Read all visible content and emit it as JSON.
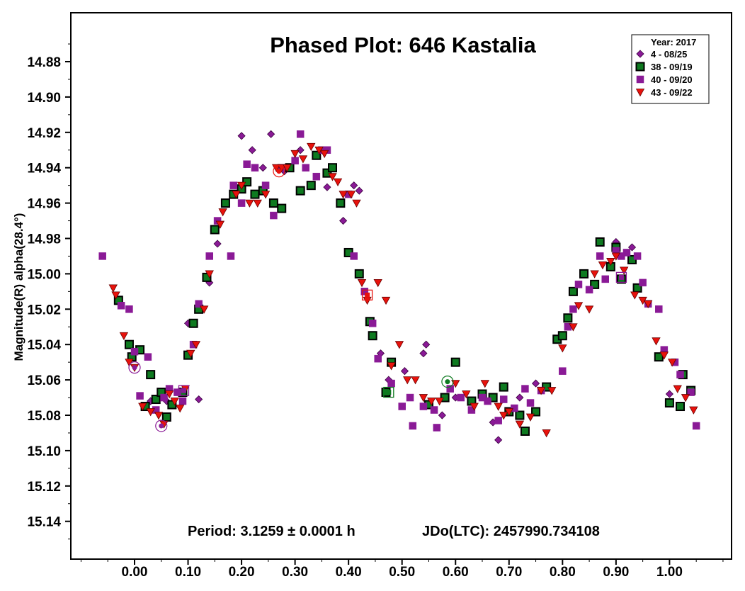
{
  "chart_data": {
    "type": "scatter",
    "title": "Phased Plot: 646 Kastalia",
    "ylabel": "Magnitude(R) alpha(28.4°)",
    "xlabel": "",
    "xlim": [
      -0.12,
      1.12
    ],
    "ylim": [
      15.16,
      14.86
    ],
    "y_inverted": true,
    "grid": false,
    "legend_position": "top-right",
    "x_ticks": [
      "0.00",
      "0.10",
      "0.20",
      "0.30",
      "0.40",
      "0.50",
      "0.60",
      "0.70",
      "0.80",
      "0.90",
      "1.00"
    ],
    "x_tick_values": [
      0.0,
      0.1,
      0.2,
      0.3,
      0.4,
      0.5,
      0.6,
      0.7,
      0.8,
      0.9,
      1.0
    ],
    "y_ticks": [
      "14.88",
      "14.90",
      "14.92",
      "14.94",
      "14.96",
      "14.98",
      "15.00",
      "15.02",
      "15.04",
      "15.06",
      "15.08",
      "15.10",
      "15.12",
      "15.14"
    ],
    "y_tick_values": [
      14.88,
      14.9,
      14.92,
      14.94,
      14.96,
      14.98,
      15.0,
      15.02,
      15.04,
      15.06,
      15.08,
      15.1,
      15.12,
      15.14
    ],
    "legend_title": "Year: 2017",
    "annotations": {
      "period": "Period: 3.1259 ± 0.0001 h",
      "jdo": "JDo(LTC): 2457990.734108"
    },
    "series": [
      {
        "name": "4 - 08/25",
        "marker": "diamond",
        "color": "#8a1a96",
        "points": [
          [
            0.03,
            15.072
          ],
          [
            0.06,
            15.072
          ],
          [
            0.1,
            15.028
          ],
          [
            0.12,
            15.071
          ],
          [
            0.14,
            15.005
          ],
          [
            0.155,
            14.983
          ],
          [
            0.2,
            14.922
          ],
          [
            0.22,
            14.93
          ],
          [
            0.24,
            14.94
          ],
          [
            0.255,
            14.921
          ],
          [
            0.28,
            14.942
          ],
          [
            0.31,
            14.93
          ],
          [
            0.36,
            14.951
          ],
          [
            0.39,
            14.97
          ],
          [
            0.41,
            14.95
          ],
          [
            0.42,
            14.953
          ],
          [
            0.46,
            15.045
          ],
          [
            0.475,
            15.06
          ],
          [
            0.505,
            15.055
          ],
          [
            0.54,
            15.045
          ],
          [
            0.545,
            15.04
          ],
          [
            0.575,
            15.08
          ],
          [
            0.6,
            15.07
          ],
          [
            0.67,
            15.084
          ],
          [
            0.68,
            15.094
          ],
          [
            0.72,
            15.07
          ],
          [
            0.75,
            15.062
          ],
          [
            0.9,
            14.982
          ],
          [
            0.93,
            14.985
          ],
          [
            1.0,
            15.068
          ]
        ]
      },
      {
        "name": "38 - 09/19",
        "marker": "square",
        "color": "#0e7a20",
        "points": [
          [
            -0.03,
            15.015
          ],
          [
            -0.01,
            15.04
          ],
          [
            -0.005,
            15.047
          ],
          [
            0.01,
            15.043
          ],
          [
            0.02,
            15.075
          ],
          [
            0.03,
            15.057
          ],
          [
            0.04,
            15.071
          ],
          [
            0.05,
            15.067
          ],
          [
            0.06,
            15.081
          ],
          [
            0.07,
            15.074
          ],
          [
            0.09,
            15.067
          ],
          [
            0.1,
            15.046
          ],
          [
            0.11,
            15.028
          ],
          [
            0.12,
            15.02
          ],
          [
            0.135,
            15.002
          ],
          [
            0.15,
            14.975
          ],
          [
            0.17,
            14.96
          ],
          [
            0.185,
            14.955
          ],
          [
            0.2,
            14.952
          ],
          [
            0.21,
            14.948
          ],
          [
            0.225,
            14.955
          ],
          [
            0.24,
            14.953
          ],
          [
            0.26,
            14.96
          ],
          [
            0.275,
            14.963
          ],
          [
            0.29,
            14.94
          ],
          [
            0.31,
            14.953
          ],
          [
            0.33,
            14.95
          ],
          [
            0.34,
            14.933
          ],
          [
            0.36,
            14.943
          ],
          [
            0.37,
            14.94
          ],
          [
            0.385,
            14.96
          ],
          [
            0.4,
            14.988
          ],
          [
            0.42,
            15.0
          ],
          [
            0.44,
            15.027
          ],
          [
            0.445,
            15.035
          ],
          [
            0.47,
            15.067
          ],
          [
            0.48,
            15.05
          ],
          [
            0.55,
            15.074
          ],
          [
            0.58,
            15.07
          ],
          [
            0.6,
            15.05
          ],
          [
            0.63,
            15.072
          ],
          [
            0.65,
            15.068
          ],
          [
            0.67,
            15.07
          ],
          [
            0.69,
            15.064
          ],
          [
            0.7,
            15.078
          ],
          [
            0.72,
            15.08
          ],
          [
            0.73,
            15.089
          ],
          [
            0.75,
            15.078
          ],
          [
            0.77,
            15.064
          ],
          [
            0.79,
            15.037
          ],
          [
            0.8,
            15.035
          ],
          [
            0.81,
            15.025
          ],
          [
            0.82,
            15.01
          ],
          [
            0.84,
            15.0
          ],
          [
            0.86,
            15.006
          ],
          [
            0.87,
            14.982
          ],
          [
            0.89,
            14.996
          ],
          [
            0.9,
            14.985
          ],
          [
            0.91,
            15.003
          ],
          [
            0.93,
            14.992
          ],
          [
            0.94,
            15.008
          ],
          [
            0.98,
            15.047
          ],
          [
            1.0,
            15.073
          ],
          [
            1.02,
            15.075
          ],
          [
            1.025,
            15.057
          ],
          [
            1.04,
            15.066
          ]
        ]
      },
      {
        "name": "40 - 09/20",
        "marker": "square",
        "color": "#8a1a96",
        "points": [
          [
            -0.06,
            14.99
          ],
          [
            -0.025,
            15.018
          ],
          [
            -0.01,
            15.02
          ],
          [
            0.0,
            15.044
          ],
          [
            0.01,
            15.069
          ],
          [
            0.025,
            15.047
          ],
          [
            0.04,
            15.077
          ],
          [
            0.055,
            15.07
          ],
          [
            0.065,
            15.065
          ],
          [
            0.08,
            15.067
          ],
          [
            0.09,
            15.072
          ],
          [
            0.11,
            15.04
          ],
          [
            0.12,
            15.017
          ],
          [
            0.14,
            14.99
          ],
          [
            0.155,
            14.97
          ],
          [
            0.18,
            14.99
          ],
          [
            0.185,
            14.95
          ],
          [
            0.2,
            14.96
          ],
          [
            0.21,
            14.938
          ],
          [
            0.225,
            14.94
          ],
          [
            0.245,
            14.95
          ],
          [
            0.26,
            14.967
          ],
          [
            0.275,
            14.94
          ],
          [
            0.3,
            14.936
          ],
          [
            0.31,
            14.921
          ],
          [
            0.32,
            14.94
          ],
          [
            0.34,
            14.945
          ],
          [
            0.35,
            14.93
          ],
          [
            0.36,
            14.93
          ],
          [
            0.4,
            14.955
          ],
          [
            0.41,
            14.99
          ],
          [
            0.43,
            15.01
          ],
          [
            0.445,
            15.028
          ],
          [
            0.455,
            15.048
          ],
          [
            0.48,
            15.062
          ],
          [
            0.5,
            15.075
          ],
          [
            0.515,
            15.07
          ],
          [
            0.52,
            15.086
          ],
          [
            0.54,
            15.075
          ],
          [
            0.56,
            15.077
          ],
          [
            0.565,
            15.087
          ],
          [
            0.59,
            15.065
          ],
          [
            0.61,
            15.07
          ],
          [
            0.63,
            15.077
          ],
          [
            0.65,
            15.07
          ],
          [
            0.66,
            15.072
          ],
          [
            0.68,
            15.083
          ],
          [
            0.69,
            15.071
          ],
          [
            0.71,
            15.076
          ],
          [
            0.73,
            15.065
          ],
          [
            0.74,
            15.073
          ],
          [
            0.76,
            15.066
          ],
          [
            0.8,
            15.055
          ],
          [
            0.81,
            15.03
          ],
          [
            0.82,
            15.02
          ],
          [
            0.83,
            15.006
          ],
          [
            0.85,
            15.009
          ],
          [
            0.87,
            14.99
          ],
          [
            0.88,
            15.003
          ],
          [
            0.9,
            14.987
          ],
          [
            0.91,
            14.99
          ],
          [
            0.92,
            14.988
          ],
          [
            0.94,
            14.99
          ],
          [
            0.95,
            15.005
          ],
          [
            0.96,
            15.017
          ],
          [
            0.98,
            15.02
          ],
          [
            0.99,
            15.043
          ],
          [
            1.01,
            15.05
          ],
          [
            1.02,
            15.057
          ],
          [
            1.04,
            15.067
          ],
          [
            1.05,
            15.086
          ]
        ]
      },
      {
        "name": "43 - 09/22",
        "marker": "triangle-down",
        "color": "#e8120c",
        "points": [
          [
            -0.04,
            15.008
          ],
          [
            -0.035,
            15.012
          ],
          [
            -0.02,
            15.035
          ],
          [
            -0.01,
            15.05
          ],
          [
            0.0,
            15.053
          ],
          [
            0.015,
            15.075
          ],
          [
            0.03,
            15.078
          ],
          [
            0.045,
            15.08
          ],
          [
            0.055,
            15.085
          ],
          [
            0.065,
            15.068
          ],
          [
            0.075,
            15.072
          ],
          [
            0.085,
            15.076
          ],
          [
            0.095,
            15.065
          ],
          [
            0.105,
            15.045
          ],
          [
            0.115,
            15.04
          ],
          [
            0.13,
            15.02
          ],
          [
            0.14,
            15.0
          ],
          [
            0.16,
            14.972
          ],
          [
            0.165,
            14.965
          ],
          [
            0.19,
            14.955
          ],
          [
            0.2,
            14.95
          ],
          [
            0.215,
            14.96
          ],
          [
            0.23,
            14.96
          ],
          [
            0.245,
            14.955
          ],
          [
            0.265,
            14.94
          ],
          [
            0.275,
            14.94
          ],
          [
            0.285,
            14.94
          ],
          [
            0.3,
            14.932
          ],
          [
            0.315,
            14.935
          ],
          [
            0.33,
            14.928
          ],
          [
            0.345,
            14.93
          ],
          [
            0.355,
            14.932
          ],
          [
            0.37,
            14.945
          ],
          [
            0.38,
            14.948
          ],
          [
            0.39,
            14.955
          ],
          [
            0.405,
            14.955
          ],
          [
            0.415,
            14.96
          ],
          [
            0.425,
            15.005
          ],
          [
            0.435,
            15.015
          ],
          [
            0.455,
            15.005
          ],
          [
            0.47,
            15.015
          ],
          [
            0.48,
            15.052
          ],
          [
            0.495,
            15.04
          ],
          [
            0.51,
            15.06
          ],
          [
            0.525,
            15.06
          ],
          [
            0.54,
            15.07
          ],
          [
            0.555,
            15.072
          ],
          [
            0.57,
            15.072
          ],
          [
            0.6,
            15.062
          ],
          [
            0.62,
            15.068
          ],
          [
            0.635,
            15.075
          ],
          [
            0.655,
            15.062
          ],
          [
            0.68,
            15.075
          ],
          [
            0.69,
            15.08
          ],
          [
            0.7,
            15.078
          ],
          [
            0.72,
            15.085
          ],
          [
            0.74,
            15.081
          ],
          [
            0.76,
            15.066
          ],
          [
            0.77,
            15.09
          ],
          [
            0.78,
            15.066
          ],
          [
            0.8,
            15.042
          ],
          [
            0.82,
            15.03
          ],
          [
            0.83,
            15.018
          ],
          [
            0.85,
            15.02
          ],
          [
            0.86,
            15.0
          ],
          [
            0.875,
            14.995
          ],
          [
            0.89,
            14.993
          ],
          [
            0.9,
            14.99
          ],
          [
            0.915,
            14.998
          ],
          [
            0.935,
            15.012
          ],
          [
            0.95,
            15.015
          ],
          [
            0.96,
            15.017
          ],
          [
            0.975,
            15.038
          ],
          [
            0.99,
            15.046
          ],
          [
            1.005,
            15.05
          ],
          [
            1.015,
            15.065
          ],
          [
            1.03,
            15.07
          ],
          [
            1.045,
            15.077
          ]
        ]
      }
    ],
    "outlined_markers": [
      {
        "marker": "circle",
        "color": "#8a1a96",
        "x": 0.0,
        "y": 15.053
      },
      {
        "marker": "circle",
        "color": "#8a1a96",
        "x": 0.05,
        "y": 15.086
      },
      {
        "marker": "square",
        "color": "#8a1a96",
        "x": 0.092,
        "y": 15.066
      },
      {
        "marker": "circle",
        "color": "#e8120c",
        "x": 0.27,
        "y": 14.942
      },
      {
        "marker": "square",
        "color": "#e8120c",
        "x": 0.435,
        "y": 15.012
      },
      {
        "marker": "square",
        "color": "#0e7a20",
        "x": 0.475,
        "y": 15.067
      },
      {
        "marker": "circle",
        "color": "#0e7a20",
        "x": 0.585,
        "y": 15.061
      },
      {
        "marker": "square",
        "color": "#8a1a96",
        "x": 0.91,
        "y": 15.002
      }
    ]
  }
}
